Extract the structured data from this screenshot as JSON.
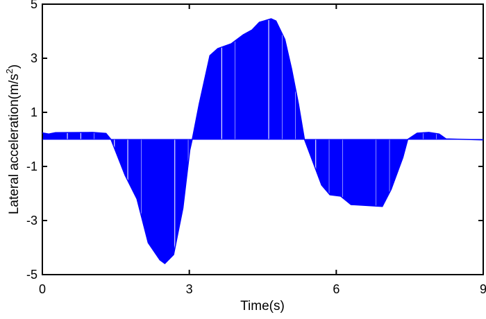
{
  "chart_data": {
    "type": "area",
    "title": "",
    "xlabel": "Time(s)",
    "ylabel": "Lateral acceleration(m/s",
    "ylabel_superscript": "2",
    "ylabel_suffix": ")",
    "xlim": [
      0,
      9
    ],
    "ylim": [
      -5,
      5
    ],
    "xticks": [
      "0",
      "3",
      "6",
      "9"
    ],
    "yticks": [
      "5",
      "3",
      "1",
      "-1",
      "-3",
      "-5"
    ],
    "grid": false,
    "color": "#0000ff",
    "series": [
      {
        "x": [
          0,
          0.13,
          0.27,
          1.02,
          1.3,
          1.4,
          1.69,
          1.93,
          2.16,
          2.4,
          2.5,
          2.68,
          2.87,
          3.01,
          3.06,
          3.2,
          3.42,
          3.58,
          3.86,
          4.1,
          4.28,
          4.43,
          4.67,
          4.77,
          4.95,
          5.09,
          5.23,
          5.35,
          5.52,
          5.7,
          5.87,
          6.09,
          6.3,
          6.94,
          7.12,
          7.36,
          7.46,
          7.65,
          7.89,
          8.1,
          8.24,
          9
        ],
        "y": [
          0.24,
          0.2,
          0.25,
          0.26,
          0.22,
          0,
          -1.33,
          -2.2,
          -3.82,
          -4.46,
          -4.59,
          -4.26,
          -2.54,
          -0.4,
          0,
          1.3,
          3.1,
          3.36,
          3.54,
          3.87,
          4.05,
          4.33,
          4.46,
          4.38,
          3.7,
          2.6,
          1.3,
          0,
          -0.82,
          -1.69,
          -2.05,
          -2.1,
          -2.41,
          -2.48,
          -1.85,
          -0.67,
          0,
          0.23,
          0.26,
          0.2,
          0.02,
          -0.02
        ]
      }
    ]
  }
}
